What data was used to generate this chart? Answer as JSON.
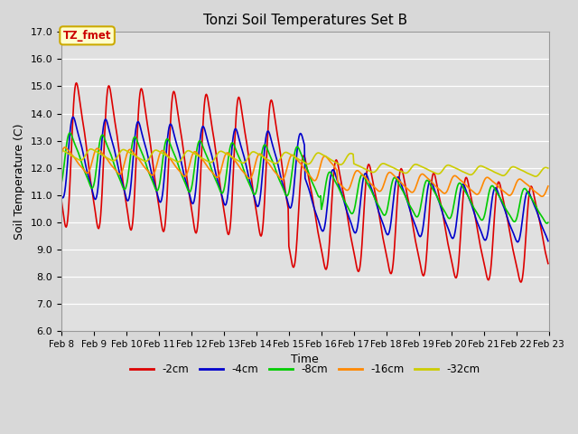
{
  "title": "Tonzi Soil Temperatures Set B",
  "xlabel": "Time",
  "ylabel": "Soil Temperature (C)",
  "ylim": [
    6.0,
    17.0
  ],
  "yticks": [
    6.0,
    7.0,
    8.0,
    9.0,
    10.0,
    11.0,
    12.0,
    13.0,
    14.0,
    15.0,
    16.0,
    17.0
  ],
  "xtick_labels": [
    "Feb 8",
    "Feb 9",
    "Feb 10",
    "Feb 11",
    "Feb 12",
    "Feb 13",
    "Feb 14",
    "Feb 15",
    "Feb 16",
    "Feb 17",
    "Feb 18",
    "Feb 19",
    "Feb 20",
    "Feb 21",
    "Feb 22",
    "Feb 23"
  ],
  "legend_labels": [
    "-2cm",
    "-4cm",
    "-8cm",
    "-16cm",
    "-32cm"
  ],
  "series_colors": [
    "#dd0000",
    "#0000cc",
    "#00cc00",
    "#ff8800",
    "#cccc00"
  ],
  "annotation_text": "TZ_fmet",
  "annotation_color": "#cc0000",
  "annotation_bg": "#ffffcc",
  "annotation_border": "#ccaa00",
  "background_color": "#e0e0e0",
  "plot_bg_color": "#d8d8d8",
  "grid_color": "#ffffff",
  "start_day": 8,
  "end_day": 23
}
